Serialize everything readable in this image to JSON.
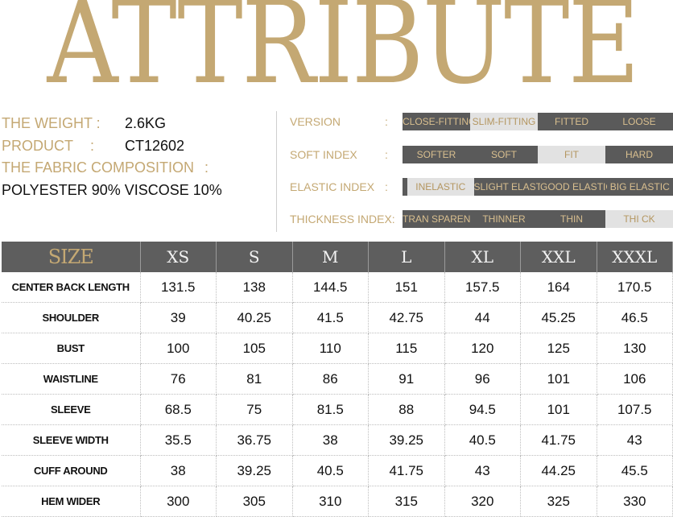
{
  "title": "ATTRIBUTE",
  "info": {
    "weight_label": "THE WEIGHT :",
    "weight_value": "2.6KG",
    "product_label": "PRODUCT",
    "product_colon": ":",
    "product_value": "CT12602",
    "fabric_label": "THE FABRIC COMPOSITION",
    "fabric_colon": ":",
    "fabric_value": "POLYESTER 90%  VISCOSE 10%"
  },
  "attributes": [
    {
      "name": "VERSION",
      "colon": ":",
      "options": [
        "CLOSE-FITTING",
        "SLIM-FITTING",
        "FITTED",
        "LOOSE"
      ],
      "selected": 1
    },
    {
      "name": "SOFT INDEX",
      "colon": ":",
      "options": [
        "SOFTER",
        "SOFT",
        "FIT",
        "HARD"
      ],
      "selected": 2
    },
    {
      "name": "ELASTIC INDEX",
      "colon": ":",
      "options": [
        "INELASTIC",
        "SLIGHT ELASTIC",
        "GOOD ELASTIC",
        "BIG ELASTIC"
      ],
      "selected": 0
    },
    {
      "name": "THICKNESS INDEX:",
      "colon": "",
      "options": [
        "TRAN SPARENT",
        "THINNER",
        "THIN",
        "THI CK"
      ],
      "selected": 3
    }
  ],
  "colors": {
    "gold": "#c4a873",
    "dark": "#5a5a5a",
    "light": "#e2e2e2"
  },
  "size_table": {
    "header": "SIZE",
    "sizes": [
      "XS",
      "S",
      "M",
      "L",
      "XL",
      "XXL",
      "XXXL"
    ],
    "rows": [
      {
        "label": "CENTER BACK LENGTH",
        "values": [
          "131.5",
          "138",
          "144.5",
          "151",
          "157.5",
          "164",
          "170.5"
        ]
      },
      {
        "label": "SHOULDER",
        "values": [
          "39",
          "40.25",
          "41.5",
          "42.75",
          "44",
          "45.25",
          "46.5"
        ]
      },
      {
        "label": "BUST",
        "values": [
          "100",
          "105",
          "110",
          "115",
          "120",
          "125",
          "130"
        ]
      },
      {
        "label": "WAISTLINE",
        "values": [
          "76",
          "81",
          "86",
          "91",
          "96",
          "101",
          "106"
        ]
      },
      {
        "label": "SLEEVE",
        "values": [
          "68.5",
          "75",
          "81.5",
          "88",
          "94.5",
          "101",
          "107.5"
        ]
      },
      {
        "label": "SLEEVE WIDTH",
        "values": [
          "35.5",
          "36.75",
          "38",
          "39.25",
          "40.5",
          "41.75",
          "43"
        ]
      },
      {
        "label": "CUFF AROUND",
        "values": [
          "38",
          "39.25",
          "40.5",
          "41.75",
          "43",
          "44.25",
          "45.5"
        ]
      },
      {
        "label": "HEM WIDER",
        "values": [
          "300",
          "305",
          "310",
          "315",
          "320",
          "325",
          "330"
        ]
      }
    ]
  }
}
